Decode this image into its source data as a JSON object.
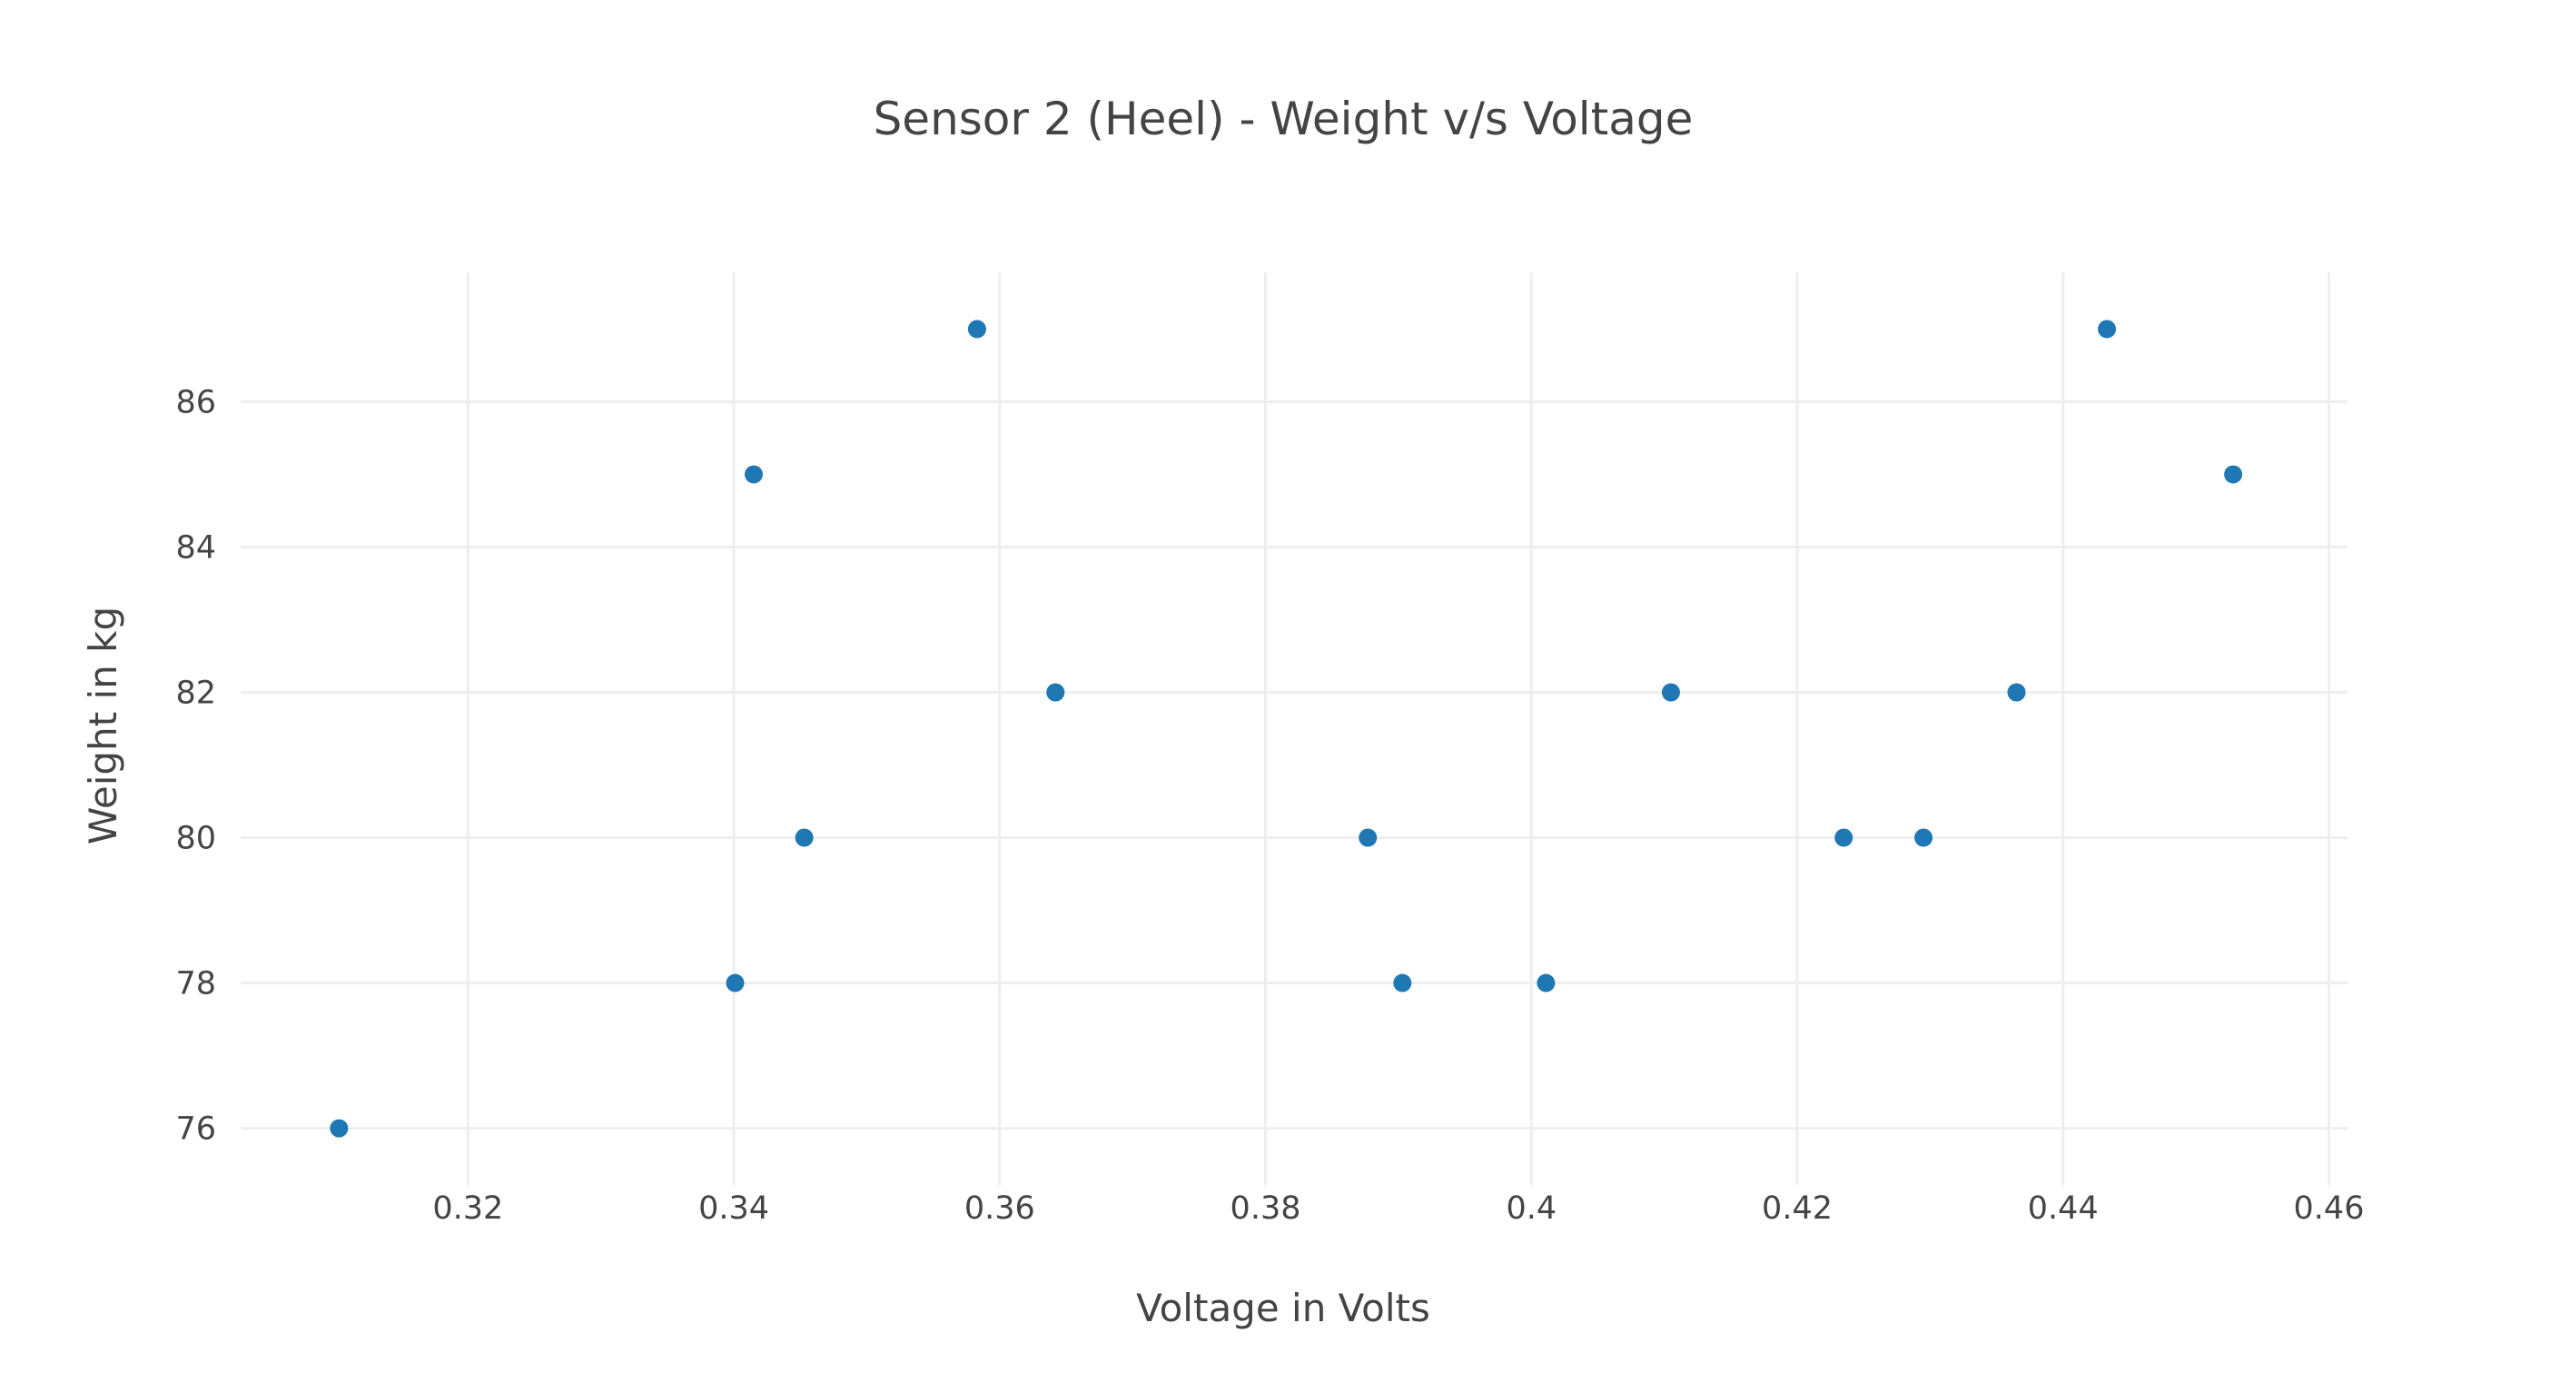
{
  "chart_data": {
    "type": "scatter",
    "title": "Sensor 2 (Heel) - Weight v/s Voltage",
    "xlabel": "Voltage in Volts",
    "ylabel": "Weight in kg",
    "xlim": [
      0.3029,
      0.4614
    ],
    "ylim": [
      75.22,
      87.78
    ],
    "xticks": [
      0.32,
      0.34,
      0.36,
      0.38,
      0.4,
      0.42,
      0.44,
      0.46
    ],
    "xtick_labels": [
      "0.32",
      "0.34",
      "0.36",
      "0.38",
      "0.4",
      "0.42",
      "0.44",
      "0.46"
    ],
    "yticks": [
      76,
      78,
      80,
      82,
      84,
      86
    ],
    "ytick_labels": [
      "76",
      "78",
      "80",
      "82",
      "84",
      "86"
    ],
    "grid": true,
    "marker_color": "#1f77b4",
    "points": [
      {
        "x": 0.3103,
        "y": 76
      },
      {
        "x": 0.3401,
        "y": 78
      },
      {
        "x": 0.3415,
        "y": 85
      },
      {
        "x": 0.3453,
        "y": 80
      },
      {
        "x": 0.3583,
        "y": 87
      },
      {
        "x": 0.3642,
        "y": 82
      },
      {
        "x": 0.3877,
        "y": 80
      },
      {
        "x": 0.3903,
        "y": 78
      },
      {
        "x": 0.4011,
        "y": 78
      },
      {
        "x": 0.4105,
        "y": 82
      },
      {
        "x": 0.4235,
        "y": 80
      },
      {
        "x": 0.4295,
        "y": 80
      },
      {
        "x": 0.4365,
        "y": 82
      },
      {
        "x": 0.4433,
        "y": 87
      },
      {
        "x": 0.4528,
        "y": 85
      }
    ]
  }
}
